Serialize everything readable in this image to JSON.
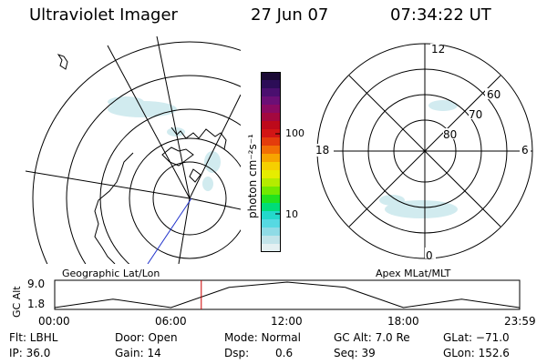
{
  "header": {
    "instrument": "Ultraviolet Imager",
    "date": "27 Jun 07",
    "time": "07:34:22 UT"
  },
  "colorbar": {
    "unit_label": "photon cm⁻²s⁻¹",
    "ticks": [
      "100",
      "10"
    ],
    "colors": [
      "#1b0a35",
      "#2c0d57",
      "#4a0f6f",
      "#6b0f76",
      "#8a0a62",
      "#a3083f",
      "#bd0a1b",
      "#d21515",
      "#e43c0c",
      "#f26f05",
      "#f7a400",
      "#f6cf00",
      "#e6ed00",
      "#b5ec00",
      "#72e900",
      "#22e21e",
      "#00dc78",
      "#23d9cb",
      "#56d9e2",
      "#8fdbe6",
      "#c2e4ea",
      "#e4f0f2"
    ]
  },
  "geo_map": {
    "label": "Geographic Lat/Lon"
  },
  "polar_map": {
    "label": "Apex MLat/MLT",
    "mlt_labels": {
      "top": "12",
      "left": "18",
      "right": "6",
      "bottom": "0"
    },
    "lat_labels": [
      "60",
      "70",
      "80"
    ]
  },
  "altitude_plot": {
    "ylabel": "GC Alt",
    "yticks": [
      "9.0",
      "1.8"
    ],
    "xticks": [
      "00:00",
      "06:00",
      "12:00",
      "18:00",
      "23:59"
    ],
    "current_time_marker": "07:34",
    "marker_color": "#cc0000"
  },
  "status": {
    "filter": "Flt: LBHL",
    "ip": "IP: 36.0",
    "door": "Door: Open",
    "gain": "Gain: 14",
    "mode": "Mode: Normal",
    "dsp_label": "Dsp:",
    "dsp_value": "0.6",
    "gc_alt": "GC Alt: 7.0 Re",
    "seq": "Seq: 39",
    "glat": "GLat: −71.0",
    "glon": "GLon: 152.6"
  },
  "chart_data": {
    "type": "line",
    "x": [
      0,
      3,
      6,
      9,
      12,
      15,
      18,
      21,
      23.98
    ],
    "series": [
      {
        "values": [
          1.8,
          4.2,
          1.8,
          7.5,
          9.0,
          7.5,
          1.8,
          4.2,
          1.8
        ]
      }
    ],
    "xlabel": "",
    "ylabel": "GC Alt",
    "ylim": [
      1.8,
      9.0
    ]
  }
}
